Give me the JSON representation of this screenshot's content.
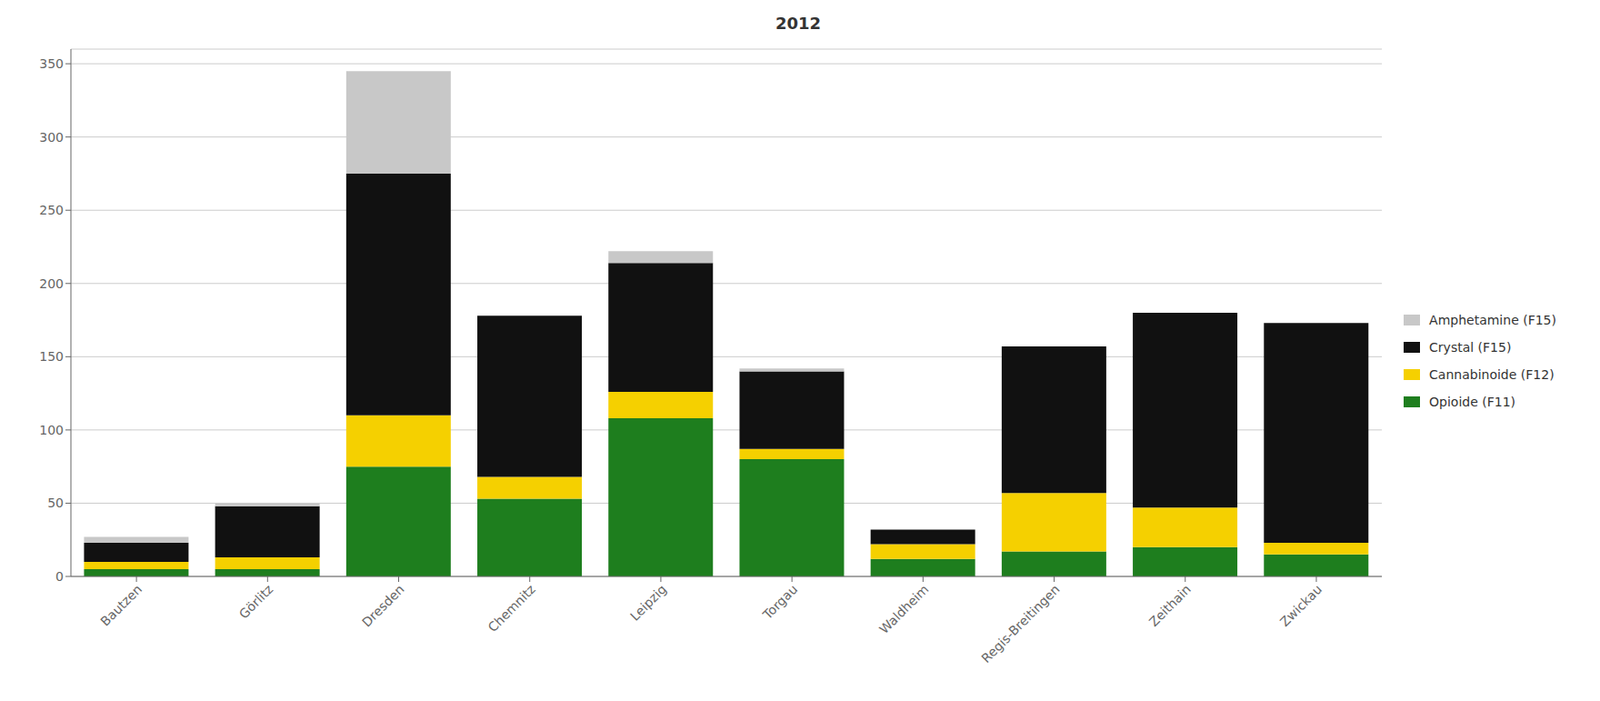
{
  "chart_data": {
    "type": "bar",
    "title": "2012",
    "categories": [
      "Bautzen",
      "Görlitz",
      "Dresden",
      "Chemnitz",
      "Leipzig",
      "Torgau",
      "Waldheim",
      "Regis-Breitingen",
      "Zeithain",
      "Zwickau"
    ],
    "series": [
      {
        "name": "Opioide (F11)",
        "color": "#1e7e1e",
        "values": [
          5,
          5,
          75,
          53,
          108,
          80,
          12,
          17,
          20,
          15
        ]
      },
      {
        "name": "Cannabinoide (F12)",
        "color": "#f5d000",
        "values": [
          5,
          8,
          35,
          15,
          18,
          7,
          10,
          40,
          27,
          8
        ]
      },
      {
        "name": "Crystal (F15)",
        "color": "#111111",
        "values": [
          13,
          35,
          165,
          110,
          88,
          53,
          10,
          100,
          133,
          150
        ]
      },
      {
        "name": "Amphetamine (F15)",
        "color": "#c8c8c8",
        "values": [
          4,
          2,
          70,
          0,
          8,
          2,
          0,
          0,
          0,
          0
        ]
      }
    ],
    "ylim": [
      0,
      360
    ],
    "yticks": [
      0,
      50,
      100,
      150,
      200,
      250,
      300,
      350
    ],
    "stacked": true,
    "grid": true,
    "legend": "right"
  }
}
